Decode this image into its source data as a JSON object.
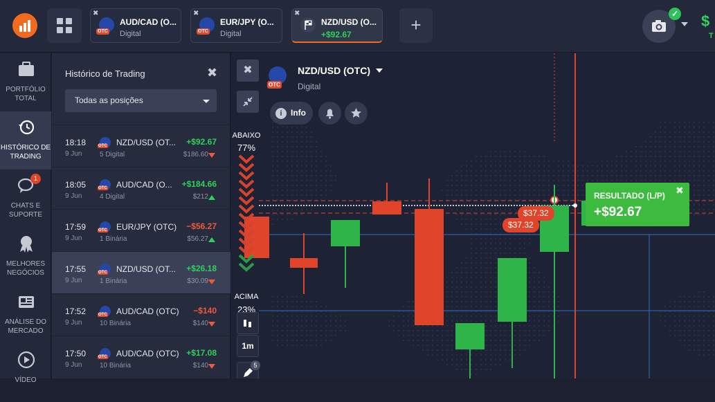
{
  "topbar": {
    "tabs": [
      {
        "title": "AUD/CAD (O...",
        "sub": "Digital",
        "otc": "OTC"
      },
      {
        "title": "EUR/JPY (O...",
        "sub": "Digital",
        "otc": "OTC"
      },
      {
        "title": "NZD/USD (O...",
        "sub": "+$92.67"
      }
    ],
    "add_label": "+",
    "balance_prefix": "$",
    "balance_sub": "T"
  },
  "sidebar": {
    "items": [
      {
        "label": "PORTFÓLIO TOTAL",
        "icon": "briefcase-icon"
      },
      {
        "label": "HISTÓRICO DE TRADING",
        "icon": "history-icon"
      },
      {
        "label": "CHATS E SUPORTE",
        "icon": "chat-icon",
        "badge": "1"
      },
      {
        "label": "MELHORES NEGÓCIOS",
        "icon": "award-icon"
      },
      {
        "label": "ANÁLISE DO MERCADO",
        "icon": "news-icon"
      },
      {
        "label": "VÍDEO",
        "icon": "play-icon"
      }
    ]
  },
  "history": {
    "title": "Histórico de Trading",
    "filter": "Todas as posições",
    "rows": [
      {
        "time": "18:18",
        "date": "9 Jun",
        "pair": "NZD/USD (OT...",
        "kind": "5 Digital",
        "pl": "+$92.67",
        "amount": "$186.60",
        "dir": "down"
      },
      {
        "time": "18:05",
        "date": "9 Jun",
        "pair": "AUD/CAD (O...",
        "kind": "4 Digital",
        "pl": "+$184.66",
        "amount": "$212",
        "dir": "up"
      },
      {
        "time": "17:59",
        "date": "9 Jun",
        "pair": "EUR/JPY (OTC)",
        "kind": "1 Binária",
        "pl": "−$56.27",
        "amount": "$56.27",
        "dir": "up"
      },
      {
        "time": "17:55",
        "date": "9 Jun",
        "pair": "NZD/USD (OT...",
        "kind": "1 Binária",
        "pl": "+$26.18",
        "amount": "$30.09",
        "dir": "down"
      },
      {
        "time": "17:52",
        "date": "9 Jun",
        "pair": "AUD/CAD (OTC)",
        "kind": "10 Binária",
        "pl": "−$140",
        "amount": "$140",
        "dir": "down"
      },
      {
        "time": "17:50",
        "date": "9 Jun",
        "pair": "AUD/CAD (OTC)",
        "kind": "10 Binária",
        "pl": "+$17.08",
        "amount": "$140",
        "dir": "down"
      }
    ]
  },
  "chart": {
    "asset_title": "NZD/USD (OTC)",
    "asset_sub": "Digital",
    "otc": "OTC",
    "info_label": "Info",
    "down_label": "ABAIXO",
    "down_pct": "77%",
    "up_label": "ACIMA",
    "up_pct": "23%",
    "timeframe": "1m",
    "tool_badge": "5",
    "price_tag_1": "$37.32",
    "price_tag_2": "$37.32",
    "result_title": "RESULTADO (L/P)",
    "result_value": "+$92.67",
    "colors": {
      "up": "#2fb44a",
      "down": "#e0452b"
    }
  }
}
